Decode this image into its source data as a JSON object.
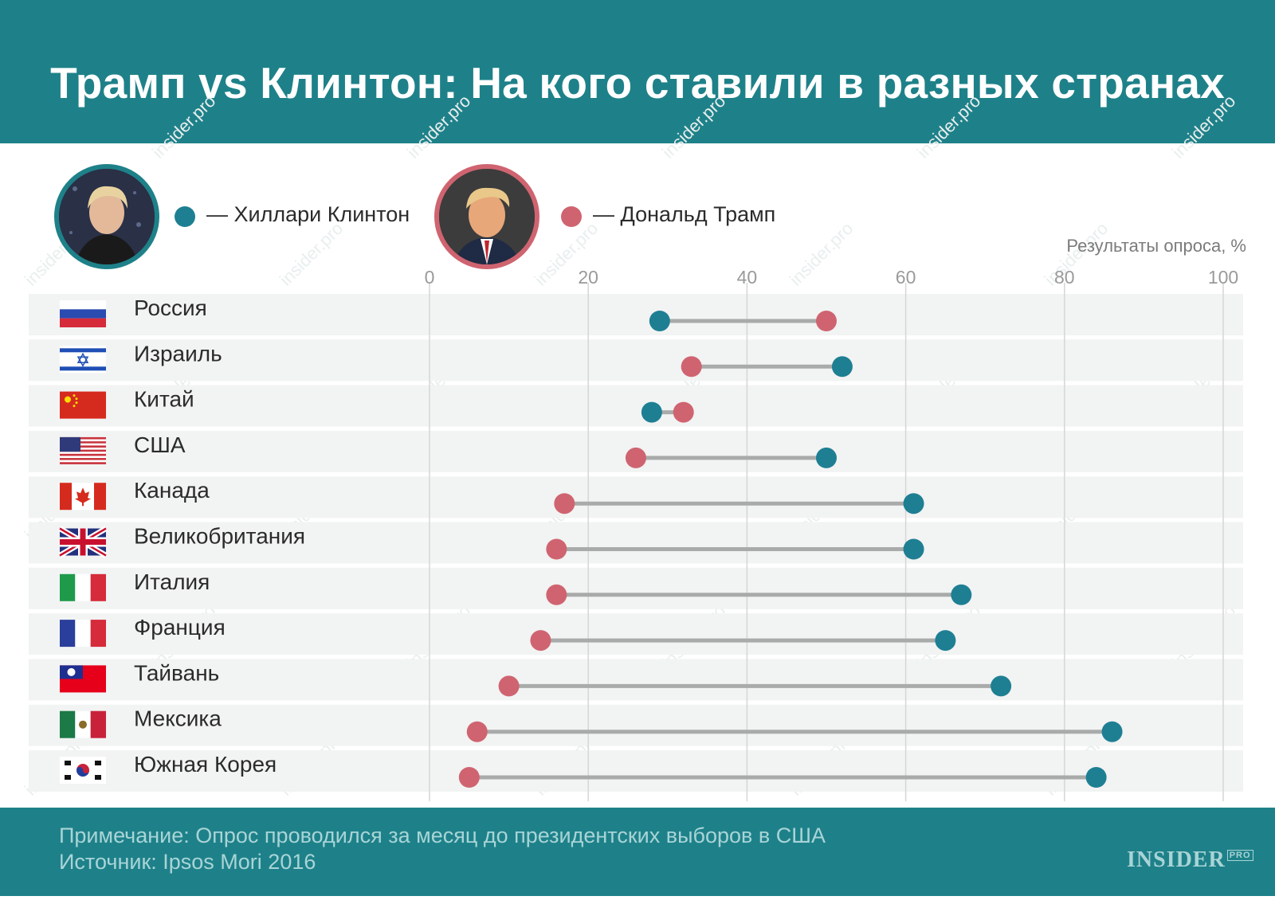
{
  "header": {
    "title": "Трамп vs Клинтон: На кого ставили в разных странах"
  },
  "legend": {
    "clinton": {
      "label": "— Хиллари Клинтон",
      "color": "#1e7f93"
    },
    "trump": {
      "label": "— Дональд Трамп",
      "color": "#cf6470"
    }
  },
  "footer": {
    "note": "Примечание: Опрос проводился за месяц до президентских выборов в США",
    "source": "Источник: Ipsos Mori 2016",
    "logo": "INSIDER",
    "logo_sup": "PRO"
  },
  "watermark": "insider.pro",
  "chart_data": {
    "type": "dumbbell",
    "axis_title": "Результаты опроса, %",
    "xlim": [
      0,
      100
    ],
    "x_ticks": [
      0,
      20,
      40,
      60,
      80,
      100
    ],
    "grid": true,
    "legend_placement": "top-left",
    "series": [
      {
        "name": "Хиллари Клинтон",
        "color": "#1e7f93"
      },
      {
        "name": "Дональд Трамп",
        "color": "#cf6470"
      }
    ],
    "rows": [
      {
        "country": "Россия",
        "flag": "russia",
        "clinton": 29,
        "trump": 50
      },
      {
        "country": "Израиль",
        "flag": "israel",
        "clinton": 52,
        "trump": 33
      },
      {
        "country": "Китай",
        "flag": "china",
        "clinton": 28,
        "trump": 32
      },
      {
        "country": "США",
        "flag": "usa",
        "clinton": 50,
        "trump": 26
      },
      {
        "country": "Канада",
        "flag": "canada",
        "clinton": 61,
        "trump": 17
      },
      {
        "country": "Великобритания",
        "flag": "uk",
        "clinton": 61,
        "trump": 16
      },
      {
        "country": "Италия",
        "flag": "italy",
        "clinton": 67,
        "trump": 16
      },
      {
        "country": "Франция",
        "flag": "france",
        "clinton": 65,
        "trump": 14
      },
      {
        "country": "Тайвань",
        "flag": "taiwan",
        "clinton": 72,
        "trump": 10
      },
      {
        "country": "Мексика",
        "flag": "mexico",
        "clinton": 86,
        "trump": 6
      },
      {
        "country": "Южная Корея",
        "flag": "south-korea",
        "clinton": 84,
        "trump": 5
      }
    ]
  }
}
